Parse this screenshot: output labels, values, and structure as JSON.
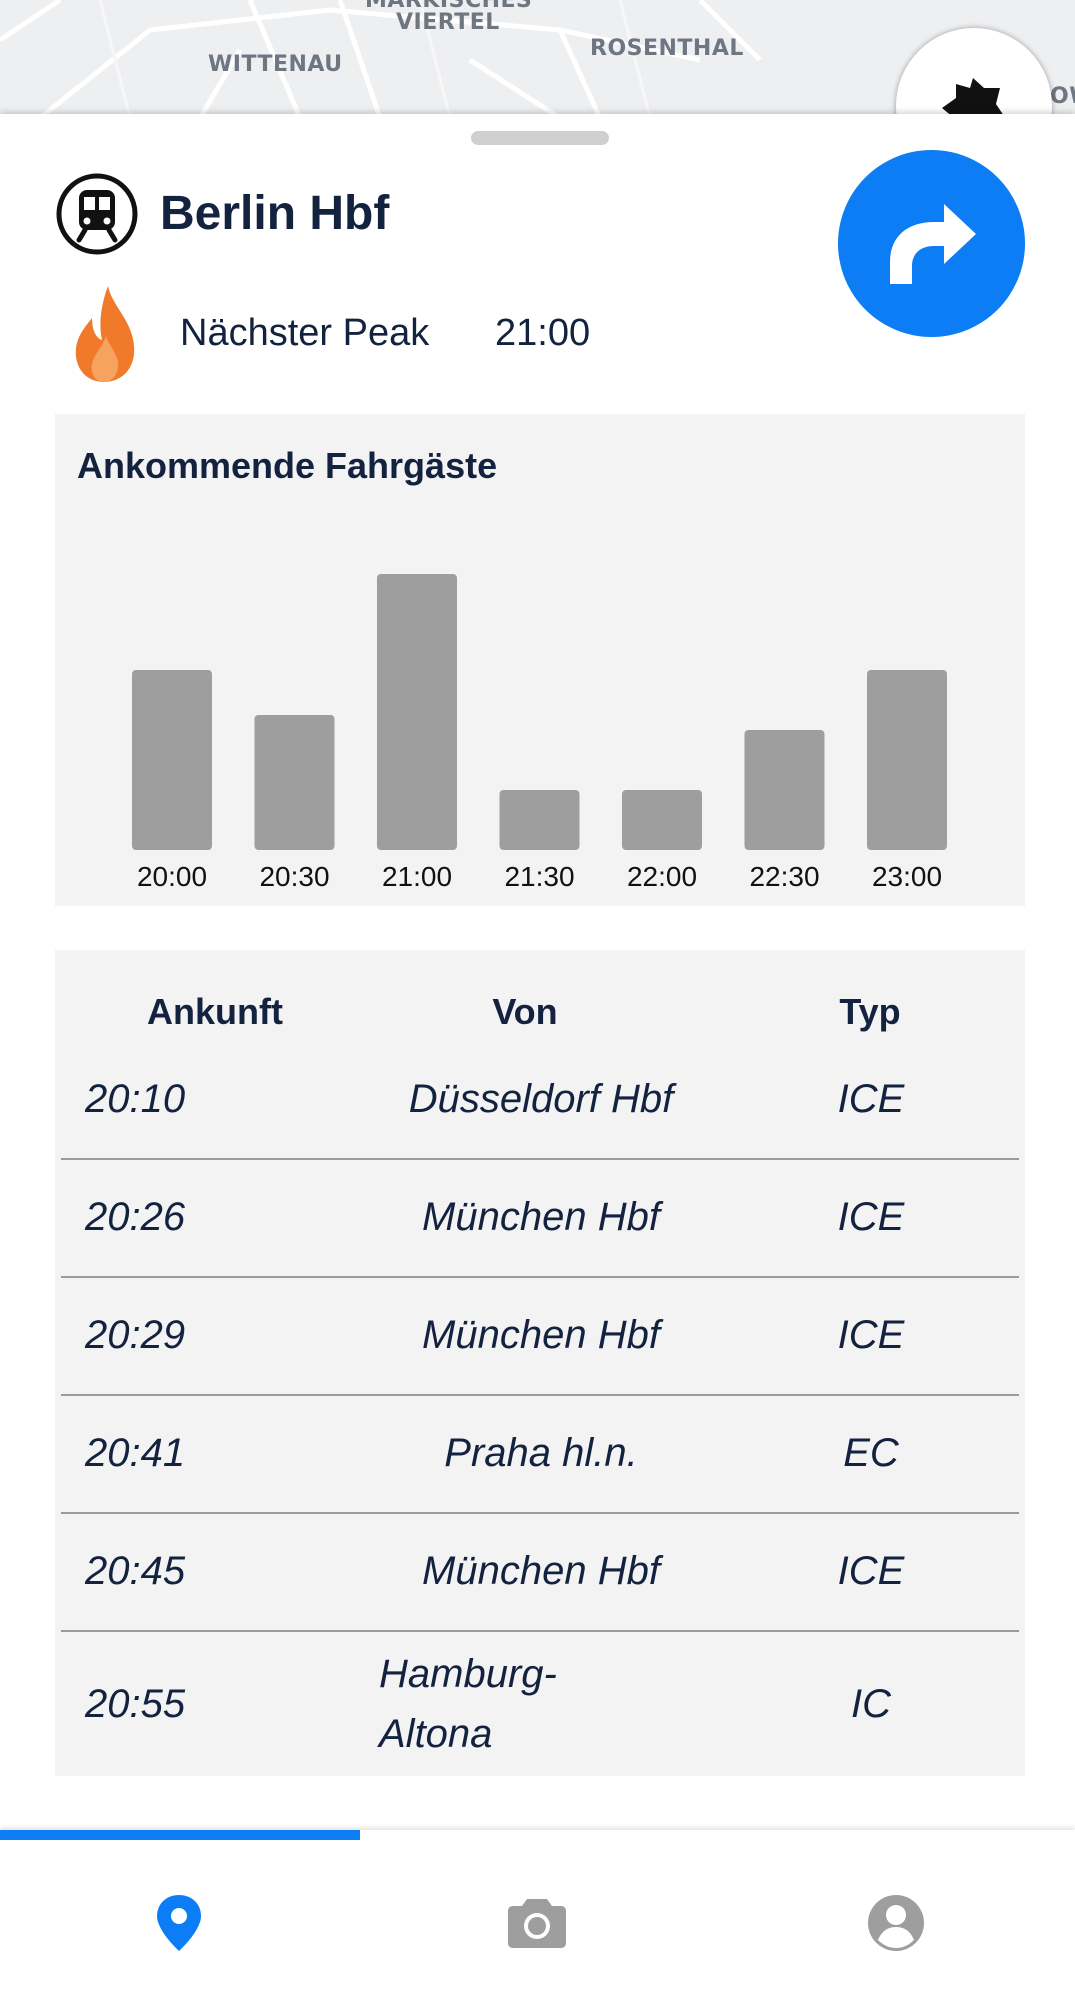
{
  "map": {
    "labels": [
      "MÄRKISCHES",
      "VIERTEL",
      "WITTENAU",
      "ROSENTHAL",
      "OW"
    ]
  },
  "station": {
    "name": "Berlin Hbf",
    "icon": "train-icon",
    "navigate_icon": "turn-right-arrow-icon"
  },
  "peak": {
    "icon": "flame-icon",
    "label": "Nächster Peak",
    "time": "21:00"
  },
  "colors": {
    "accent": "#0d7df6",
    "text": "#13223f",
    "bar": "#9e9e9e",
    "card": "#f3f3f3",
    "flame": "#f07a2a"
  },
  "chart_data": {
    "type": "bar",
    "title": "Ankommende Fahrgäste",
    "categories": [
      "20:00",
      "20:30",
      "21:00",
      "21:30",
      "22:00",
      "22:30",
      "23:00"
    ],
    "values": [
      6,
      4.5,
      9.2,
      2,
      2,
      4,
      6
    ],
    "ylim": [
      0,
      10
    ],
    "grid": false,
    "xlabel": "",
    "ylabel": ""
  },
  "table": {
    "headers": [
      "Ankunft",
      "Von",
      "Typ"
    ],
    "rows": [
      {
        "time": "20:10",
        "from": "Düsseldorf Hbf",
        "type": "ICE"
      },
      {
        "time": "20:26",
        "from": "München Hbf",
        "type": "ICE"
      },
      {
        "time": "20:29",
        "from": "München Hbf",
        "type": "ICE"
      },
      {
        "time": "20:41",
        "from": "Praha hl.n.",
        "type": "EC"
      },
      {
        "time": "20:45",
        "from": "München Hbf",
        "type": "ICE"
      },
      {
        "time": "20:55",
        "from": "Hamburg-Altona",
        "type": "IC"
      }
    ]
  },
  "bottom_nav": {
    "tabs": [
      {
        "icon": "map-pin-icon",
        "active": true
      },
      {
        "icon": "camera-icon",
        "active": false
      },
      {
        "icon": "account-icon",
        "active": false
      }
    ]
  }
}
